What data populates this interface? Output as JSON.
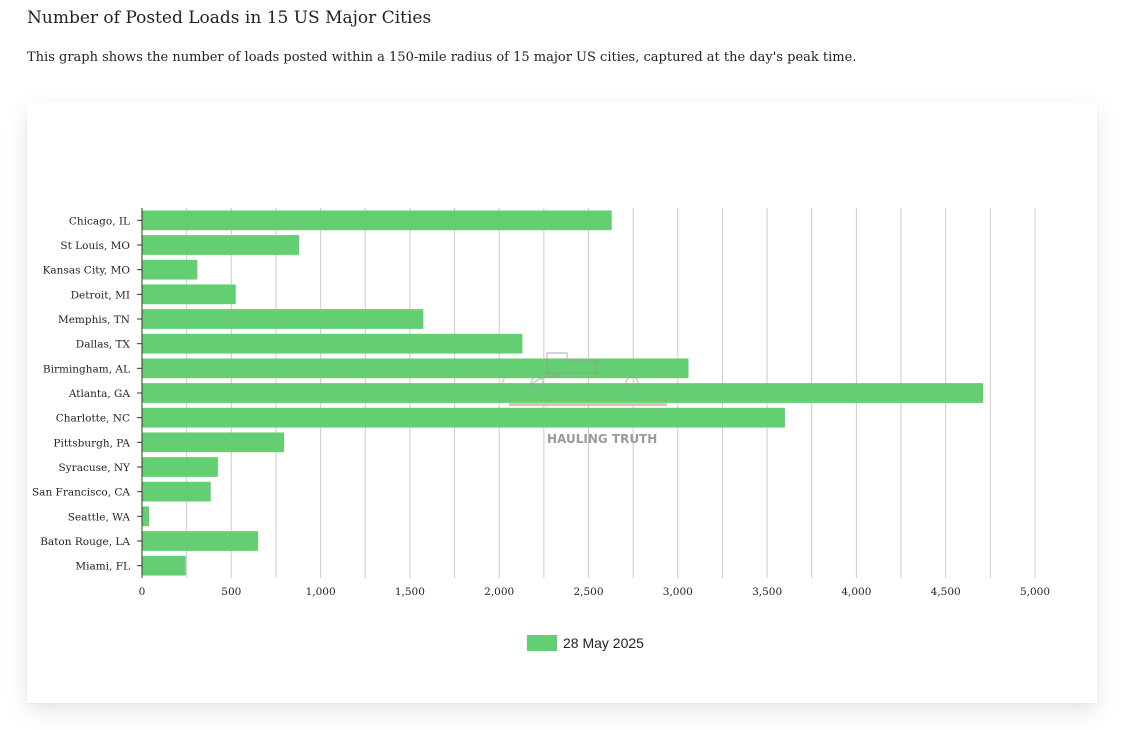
{
  "header": {
    "title": "Number of Posted Loads in 15 US Major Cities",
    "description": "This graph shows the number of loads posted within a 150-mile radius of 15 major US cities, captured at the day's peak time."
  },
  "watermark": {
    "text": "HAULING TRUTH"
  },
  "colors": {
    "bar": "#63cf72",
    "grid": "#cccccc",
    "axis": "#333333"
  },
  "chart_data": {
    "type": "bar",
    "orientation": "horizontal",
    "categories": [
      "Chicago, IL",
      "St Louis, MO",
      "Kansas City, MO",
      "Detroit, MI",
      "Memphis, TN",
      "Dallas, TX",
      "Birmingham, AL",
      "Atlanta, GA",
      "Charlotte, NC",
      "Pittsburgh, PA",
      "Syracuse, NY",
      "San Francisco, CA",
      "Seattle, WA",
      "Baton Rouge, LA",
      "Miami, FL"
    ],
    "series": [
      {
        "name": "28 May 2025",
        "values": [
          2630,
          880,
          310,
          525,
          1575,
          2130,
          3060,
          4710,
          3600,
          795,
          425,
          385,
          40,
          650,
          245
        ]
      }
    ],
    "xlim": [
      0,
      5000
    ],
    "x_ticks": [
      0,
      500,
      1000,
      1500,
      2000,
      2500,
      3000,
      3500,
      4000,
      4500,
      5000
    ],
    "x_tick_labels": [
      "0",
      "500",
      "1,000",
      "1,500",
      "2,000",
      "2,500",
      "3,000",
      "3,500",
      "4,000",
      "4,500",
      "5,000"
    ],
    "minor_gridlines_every": 250,
    "grid": true,
    "legend_position": "bottom"
  }
}
